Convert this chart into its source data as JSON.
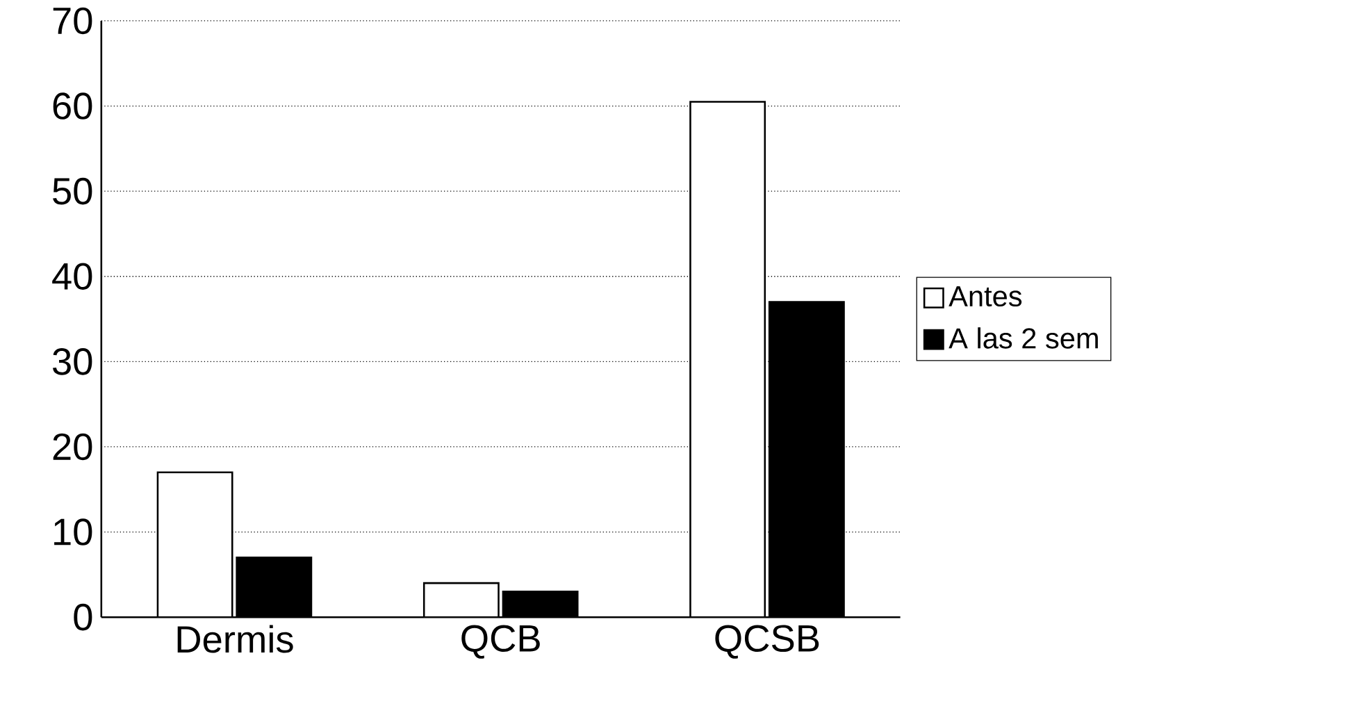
{
  "chart_data": {
    "type": "bar",
    "categories": [
      "Dermis",
      "QCB",
      "QCSB"
    ],
    "series": [
      {
        "name": "Antes",
        "color": "#ffffff",
        "values": [
          17,
          4,
          60.5
        ]
      },
      {
        "name": "A las 2 sem",
        "color": "#000000",
        "values": [
          7,
          3,
          37
        ]
      }
    ],
    "ylim": [
      0,
      70
    ],
    "yticks": [
      0,
      10,
      20,
      30,
      40,
      50,
      60,
      70
    ],
    "grid": "y",
    "legend": "right"
  }
}
